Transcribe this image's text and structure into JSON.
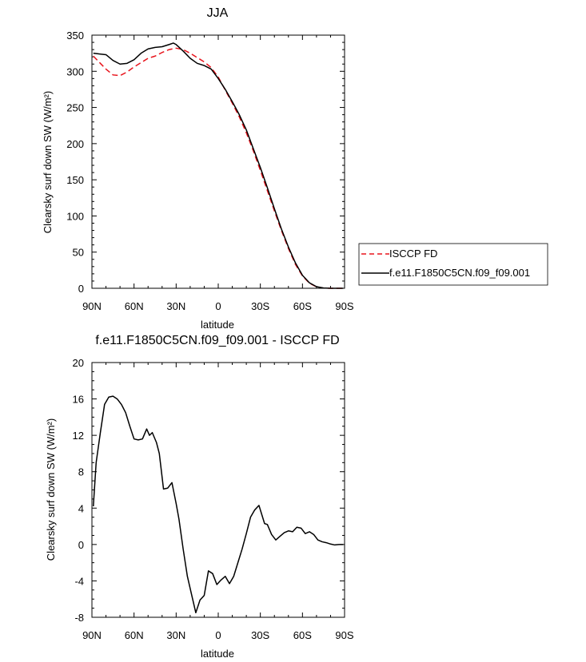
{
  "chart_data": [
    {
      "type": "line",
      "title": "JJA",
      "ylabel": "Clearsky surf down SW (W/m²)",
      "xlabel": "latitude",
      "xlim": [
        90,
        -90
      ],
      "ylim": [
        0,
        350
      ],
      "xticks": [
        {
          "value": 90,
          "label": "90N"
        },
        {
          "value": 60,
          "label": "60N"
        },
        {
          "value": 30,
          "label": "30N"
        },
        {
          "value": 0,
          "label": "0"
        },
        {
          "value": -30,
          "label": "30S"
        },
        {
          "value": -60,
          "label": "60S"
        },
        {
          "value": -90,
          "label": "90S"
        }
      ],
      "yticks": [
        0,
        50,
        100,
        150,
        200,
        250,
        300,
        350
      ],
      "legend_position": "right",
      "series": [
        {
          "name": "ISCCP FD",
          "color": "#e8141c",
          "dash": "dashed",
          "x": [
            89,
            85,
            80,
            75,
            70,
            65,
            60,
            55,
            50,
            45,
            40,
            35,
            30,
            25,
            20,
            15,
            10,
            5,
            0,
            -5,
            -10,
            -15,
            -20,
            -25,
            -30,
            -35,
            -40,
            -45,
            -50,
            -55,
            -60,
            -65,
            -70,
            -75,
            -80,
            -85,
            -89
          ],
          "y": [
            321,
            313,
            303,
            295,
            294,
            299,
            306,
            312,
            318,
            321,
            326,
            330,
            332,
            330,
            325,
            319,
            313,
            305,
            292,
            274,
            256,
            237,
            215,
            190,
            163,
            135,
            107,
            80,
            55,
            33,
            17,
            7,
            2,
            0.3,
            0,
            0,
            0
          ]
        },
        {
          "name": "f.e11.F1850C5CN.f09_f09.001",
          "color": "#000000",
          "dash": "solid",
          "x": [
            89,
            85,
            80,
            75,
            70,
            65,
            60,
            55,
            50,
            45,
            40,
            35,
            32,
            30,
            25,
            20,
            15,
            10,
            5,
            0,
            -5,
            -10,
            -15,
            -20,
            -25,
            -30,
            -35,
            -40,
            -45,
            -50,
            -55,
            -60,
            -65,
            -70,
            -75,
            -80,
            -85,
            -89
          ],
          "y": [
            325,
            324,
            323,
            315,
            310,
            311,
            316,
            325,
            331,
            333,
            334,
            337,
            339,
            337,
            328,
            318,
            311,
            308,
            303,
            290,
            275,
            258,
            240,
            219,
            193,
            167,
            139,
            110,
            82,
            57,
            35,
            18,
            7.5,
            2.2,
            0.4,
            0,
            0,
            0
          ]
        }
      ]
    },
    {
      "type": "line",
      "title": "f.e11.F1850C5CN.f09_f09.001 - ISCCP FD",
      "ylabel": "Clearsky surf down SW (W/m²)",
      "xlabel": "latitude",
      "xlim": [
        90,
        -90
      ],
      "ylim": [
        -8,
        20
      ],
      "xticks": [
        {
          "value": 90,
          "label": "90N"
        },
        {
          "value": 60,
          "label": "60N"
        },
        {
          "value": 30,
          "label": "30N"
        },
        {
          "value": 0,
          "label": "0"
        },
        {
          "value": -30,
          "label": "30S"
        },
        {
          "value": -60,
          "label": "60S"
        },
        {
          "value": -90,
          "label": "90S"
        }
      ],
      "yticks": [
        -8,
        -4,
        0,
        4,
        8,
        12,
        16,
        20
      ],
      "series": [
        {
          "color": "#000000",
          "dash": "solid",
          "x": [
            89,
            87,
            84,
            81,
            78,
            75,
            72,
            69,
            66,
            63,
            60,
            57,
            54,
            51,
            49,
            47,
            44,
            42,
            39,
            36,
            33,
            30,
            28,
            25,
            22,
            19,
            16,
            13,
            10,
            7,
            4,
            1,
            -2,
            -5,
            -8,
            -11,
            -14,
            -17,
            -20,
            -23,
            -26,
            -29,
            -31,
            -33,
            -35,
            -38,
            -41,
            -44,
            -47,
            -50,
            -53,
            -56,
            -59,
            -62,
            -65,
            -68,
            -71,
            -74,
            -77,
            -80,
            -83,
            -86,
            -89
          ],
          "y": [
            4.2,
            9.0,
            12.3,
            15.4,
            16.2,
            16.3,
            16.0,
            15.4,
            14.5,
            13.0,
            11.6,
            11.5,
            11.6,
            12.7,
            12.0,
            12.3,
            11.2,
            10.0,
            6.1,
            6.2,
            6.8,
            4.5,
            2.8,
            -0.5,
            -3.5,
            -5.5,
            -7.5,
            -6.1,
            -5.6,
            -2.9,
            -3.2,
            -4.4,
            -3.9,
            -3.5,
            -4.3,
            -3.5,
            -2.0,
            -0.5,
            1.2,
            3.0,
            3.8,
            4.3,
            3.3,
            2.3,
            2.2,
            1.1,
            0.5,
            0.9,
            1.3,
            1.5,
            1.4,
            1.9,
            1.8,
            1.2,
            1.4,
            1.1,
            0.5,
            0.3,
            0.2,
            0.05,
            -0.05,
            0.0,
            0.0
          ]
        }
      ]
    }
  ]
}
